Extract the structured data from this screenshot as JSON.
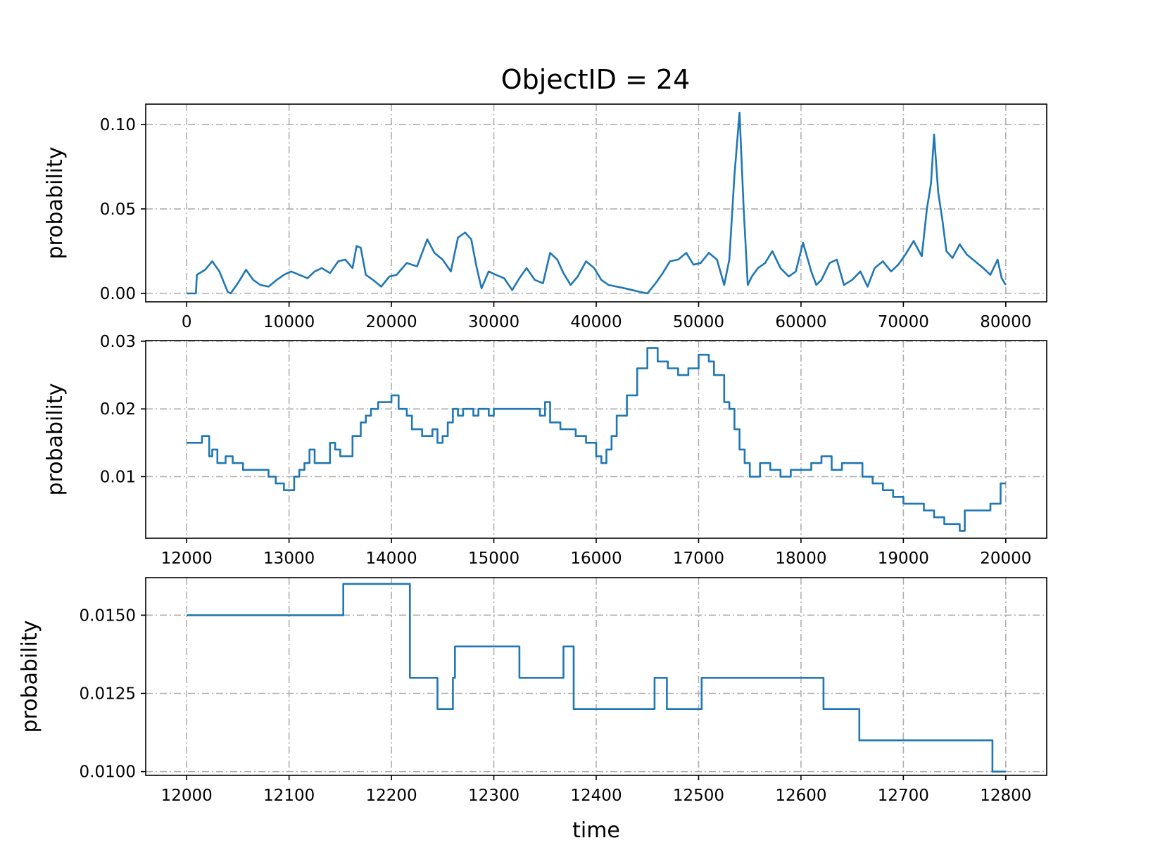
{
  "title": "ObjectID = 24",
  "colors": {
    "series": "#1f77b4",
    "grid": "#b0b0b0"
  },
  "chart_data": [
    {
      "type": "line",
      "ylabel": "probability",
      "xlabel": "",
      "xlim": [
        -4000,
        84000
      ],
      "ylim": [
        -0.005,
        0.112
      ],
      "xticks": [
        0,
        10000,
        20000,
        30000,
        40000,
        50000,
        60000,
        70000,
        80000
      ],
      "xtick_labels": [
        "0",
        "10000",
        "20000",
        "30000",
        "40000",
        "50000",
        "60000",
        "70000",
        "80000"
      ],
      "yticks": [
        0.0,
        0.05,
        0.1
      ],
      "ytick_labels": [
        "0.00",
        "0.05",
        "0.10"
      ],
      "grid": true,
      "step": false,
      "series": [
        {
          "x": [
            0,
            900,
            1000,
            1800,
            2500,
            3200,
            4000,
            4300,
            5000,
            5800,
            6500,
            7200,
            8000,
            8800,
            9500,
            10200,
            11000,
            11800,
            12500,
            13200,
            14000,
            14800,
            15500,
            16200,
            16600,
            17000,
            17500,
            18200,
            19000,
            19800,
            20500,
            21500,
            22500,
            23500,
            24200,
            25000,
            25800,
            26500,
            27200,
            27800,
            28300,
            28800,
            29500,
            30200,
            31000,
            31800,
            32500,
            33200,
            34000,
            34800,
            35500,
            36200,
            36800,
            37500,
            38200,
            39000,
            39800,
            40500,
            41200,
            42000,
            42800,
            43500,
            44200,
            45000,
            45800,
            46500,
            47200,
            48000,
            48800,
            49500,
            50200,
            51000,
            51800,
            52500,
            53000,
            53500,
            54000,
            54400,
            54800,
            55200,
            55800,
            56500,
            57200,
            58000,
            58800,
            59500,
            60200,
            61000,
            61500,
            62000,
            62800,
            63500,
            64200,
            65000,
            65800,
            66500,
            67200,
            68000,
            68800,
            69500,
            70200,
            71000,
            71800,
            72300,
            72700,
            73000,
            73400,
            73800,
            74200,
            74800,
            75500,
            76200,
            77000,
            77800,
            78500,
            79200,
            79600,
            80000
          ],
          "y": [
            0.0,
            0.0,
            0.011,
            0.014,
            0.019,
            0.013,
            0.001,
            0.0,
            0.006,
            0.014,
            0.008,
            0.005,
            0.004,
            0.008,
            0.011,
            0.013,
            0.011,
            0.009,
            0.013,
            0.015,
            0.012,
            0.019,
            0.02,
            0.015,
            0.028,
            0.027,
            0.011,
            0.008,
            0.004,
            0.01,
            0.011,
            0.018,
            0.016,
            0.032,
            0.024,
            0.02,
            0.013,
            0.033,
            0.036,
            0.032,
            0.016,
            0.003,
            0.013,
            0.011,
            0.009,
            0.002,
            0.009,
            0.015,
            0.008,
            0.006,
            0.024,
            0.02,
            0.012,
            0.005,
            0.01,
            0.019,
            0.015,
            0.008,
            0.005,
            0.004,
            0.003,
            0.002,
            0.001,
            0.0,
            0.006,
            0.012,
            0.019,
            0.02,
            0.024,
            0.017,
            0.018,
            0.024,
            0.02,
            0.005,
            0.02,
            0.07,
            0.107,
            0.05,
            0.005,
            0.01,
            0.015,
            0.018,
            0.025,
            0.015,
            0.01,
            0.013,
            0.03,
            0.013,
            0.005,
            0.008,
            0.018,
            0.02,
            0.005,
            0.008,
            0.013,
            0.004,
            0.015,
            0.019,
            0.013,
            0.017,
            0.023,
            0.031,
            0.022,
            0.05,
            0.065,
            0.094,
            0.06,
            0.044,
            0.025,
            0.021,
            0.029,
            0.023,
            0.019,
            0.015,
            0.011,
            0.02,
            0.009,
            0.005
          ]
        }
      ]
    },
    {
      "type": "line",
      "ylabel": "probability",
      "xlabel": "",
      "xlim": [
        11600,
        20400
      ],
      "ylim": [
        0.0009,
        0.0301
      ],
      "xticks": [
        12000,
        13000,
        14000,
        15000,
        16000,
        17000,
        18000,
        19000,
        20000
      ],
      "xtick_labels": [
        "12000",
        "13000",
        "14000",
        "15000",
        "16000",
        "17000",
        "18000",
        "19000",
        "20000"
      ],
      "yticks": [
        0.01,
        0.02,
        0.03
      ],
      "ytick_labels": [
        "0.01",
        "0.02",
        "0.03"
      ],
      "grid": true,
      "step": true,
      "series": [
        {
          "x": [
            12000,
            12150,
            12220,
            12250,
            12300,
            12380,
            12450,
            12500,
            12550,
            12650,
            12800,
            12870,
            12950,
            13050,
            13100,
            13150,
            13200,
            13250,
            13300,
            13400,
            13450,
            13500,
            13550,
            13620,
            13700,
            13750,
            13800,
            13870,
            13950,
            14000,
            14070,
            14150,
            14200,
            14300,
            14350,
            14400,
            14450,
            14500,
            14550,
            14600,
            14650,
            14700,
            14800,
            14850,
            14950,
            15000,
            15200,
            15300,
            15450,
            15500,
            15550,
            15650,
            15800,
            15900,
            16000,
            16050,
            16100,
            16150,
            16200,
            16300,
            16400,
            16500,
            16600,
            16700,
            16800,
            16900,
            17000,
            17050,
            17100,
            17150,
            17250,
            17300,
            17350,
            17400,
            17450,
            17500,
            17600,
            17700,
            17800,
            17900,
            18000,
            18100,
            18200,
            18300,
            18400,
            18500,
            18600,
            18700,
            18800,
            18900,
            19000,
            19100,
            19200,
            19300,
            19400,
            19500,
            19550,
            19600,
            19700,
            19850,
            19950,
            20000
          ],
          "y": [
            0.015,
            0.016,
            0.013,
            0.014,
            0.012,
            0.013,
            0.012,
            0.012,
            0.011,
            0.011,
            0.01,
            0.009,
            0.008,
            0.01,
            0.011,
            0.012,
            0.014,
            0.012,
            0.012,
            0.015,
            0.014,
            0.013,
            0.013,
            0.016,
            0.018,
            0.019,
            0.02,
            0.021,
            0.021,
            0.022,
            0.02,
            0.019,
            0.017,
            0.016,
            0.016,
            0.017,
            0.015,
            0.016,
            0.018,
            0.02,
            0.019,
            0.02,
            0.019,
            0.02,
            0.019,
            0.02,
            0.02,
            0.02,
            0.019,
            0.021,
            0.018,
            0.017,
            0.016,
            0.015,
            0.013,
            0.012,
            0.014,
            0.016,
            0.019,
            0.022,
            0.026,
            0.029,
            0.027,
            0.026,
            0.025,
            0.026,
            0.028,
            0.028,
            0.027,
            0.025,
            0.021,
            0.02,
            0.017,
            0.014,
            0.012,
            0.01,
            0.012,
            0.011,
            0.01,
            0.011,
            0.011,
            0.012,
            0.013,
            0.011,
            0.012,
            0.012,
            0.01,
            0.009,
            0.008,
            0.007,
            0.006,
            0.006,
            0.005,
            0.004,
            0.003,
            0.003,
            0.002,
            0.005,
            0.005,
            0.006,
            0.009,
            0.009
          ]
        }
      ]
    },
    {
      "type": "line",
      "ylabel": "probability",
      "xlabel": "time",
      "xlim": [
        11960,
        12840
      ],
      "ylim": [
        0.00988,
        0.0162
      ],
      "xticks": [
        12000,
        12100,
        12200,
        12300,
        12400,
        12500,
        12600,
        12700,
        12800
      ],
      "xtick_labels": [
        "12000",
        "12100",
        "12200",
        "12300",
        "12400",
        "12500",
        "12600",
        "12700",
        "12800"
      ],
      "yticks": [
        0.01,
        0.0125,
        0.015
      ],
      "ytick_labels": [
        "0.0100",
        "0.0125",
        "0.0150"
      ],
      "grid": true,
      "step": true,
      "series": [
        {
          "x": [
            12000,
            12153,
            12218,
            12245,
            12260,
            12262,
            12325,
            12368,
            12378,
            12457,
            12469,
            12503,
            12622,
            12657,
            12787,
            12800
          ],
          "y": [
            0.015,
            0.016,
            0.013,
            0.012,
            0.013,
            0.014,
            0.013,
            0.014,
            0.012,
            0.013,
            0.012,
            0.013,
            0.012,
            0.011,
            0.01,
            0.01
          ]
        }
      ]
    }
  ]
}
